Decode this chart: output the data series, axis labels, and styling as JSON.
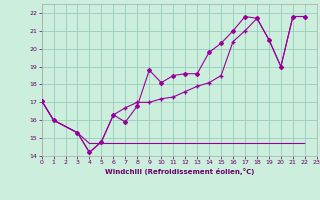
{
  "bg_color": "#cceedd",
  "grid_color": "#99ccbb",
  "line_color": "#990099",
  "xlim": [
    0,
    23
  ],
  "ylim": [
    14,
    22.5
  ],
  "ytick_vals": [
    14,
    15,
    16,
    17,
    18,
    19,
    20,
    21,
    22
  ],
  "xtick_vals": [
    0,
    1,
    2,
    3,
    4,
    5,
    6,
    7,
    8,
    9,
    10,
    11,
    12,
    13,
    14,
    15,
    16,
    17,
    18,
    19,
    20,
    21,
    22,
    23
  ],
  "xlabel": "Windchill (Refroidissement éolien,°C)",
  "s1_x": [
    0,
    1,
    3,
    4,
    5,
    6,
    7,
    8,
    9,
    10,
    11,
    12,
    13,
    14,
    15,
    16,
    17,
    18,
    19,
    20,
    21,
    22
  ],
  "s1_y": [
    17.1,
    16.0,
    15.3,
    14.2,
    14.8,
    16.3,
    15.9,
    16.8,
    18.8,
    18.1,
    18.5,
    18.6,
    18.6,
    19.8,
    20.3,
    21.0,
    21.8,
    21.7,
    20.5,
    19.0,
    21.8,
    21.8
  ],
  "s2_x": [
    0,
    1,
    3,
    4,
    5,
    6,
    7,
    8,
    9,
    10,
    11,
    12,
    13,
    14,
    15,
    16,
    17,
    18,
    19,
    20,
    21,
    22
  ],
  "s2_y": [
    17.1,
    16.0,
    15.3,
    14.2,
    14.8,
    16.3,
    16.7,
    17.0,
    17.0,
    17.2,
    17.3,
    17.6,
    17.9,
    18.1,
    18.5,
    20.4,
    21.0,
    21.7,
    20.5,
    19.0,
    21.8,
    21.8
  ],
  "s3_x": [
    0,
    1,
    3,
    4,
    5,
    10,
    14,
    19,
    20,
    22
  ],
  "s3_y": [
    17.1,
    16.0,
    15.3,
    14.7,
    14.7,
    14.7,
    14.7,
    14.7,
    14.7,
    14.7
  ]
}
